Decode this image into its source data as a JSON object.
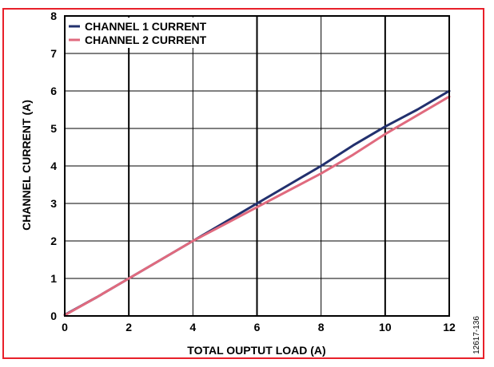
{
  "figure_id": "12617-136",
  "frame_color": "#e8202a",
  "chart_data": {
    "type": "line",
    "title": "",
    "xlabel": "TOTAL OUPTUT LOAD (A)",
    "ylabel": "CHANNEL CURRENT (A)",
    "xlim": [
      0,
      12
    ],
    "ylim": [
      0,
      8
    ],
    "xticks": [
      0,
      2,
      4,
      6,
      8,
      10,
      12
    ],
    "yticks": [
      0,
      1,
      2,
      3,
      4,
      5,
      6,
      7,
      8
    ],
    "grid": true,
    "legend_position": "top-left",
    "series": [
      {
        "name": "CHANNEL 1 CURRENT",
        "color": "#22306e",
        "x": [
          0,
          1,
          2,
          3,
          4,
          5,
          6,
          7,
          8,
          9,
          10,
          11,
          12
        ],
        "y": [
          0.03,
          0.5,
          1.0,
          1.5,
          2.0,
          2.5,
          3.0,
          3.5,
          4.0,
          4.55,
          5.05,
          5.5,
          6.0
        ]
      },
      {
        "name": "CHANNEL 2 CURRENT",
        "color": "#e06a7e",
        "x": [
          0,
          1,
          2,
          3,
          4,
          5,
          6,
          7,
          8,
          9,
          10,
          11,
          12
        ],
        "y": [
          0.02,
          0.5,
          1.0,
          1.5,
          2.0,
          2.45,
          2.9,
          3.35,
          3.8,
          4.3,
          4.85,
          5.35,
          5.85
        ]
      }
    ]
  }
}
